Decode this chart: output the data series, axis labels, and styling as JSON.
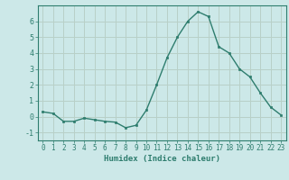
{
  "x": [
    0,
    1,
    2,
    3,
    4,
    5,
    6,
    7,
    8,
    9,
    10,
    11,
    12,
    13,
    14,
    15,
    16,
    17,
    18,
    19,
    20,
    21,
    22,
    23
  ],
  "y": [
    0.3,
    0.2,
    -0.3,
    -0.3,
    -0.1,
    -0.2,
    -0.3,
    -0.35,
    -0.7,
    -0.55,
    0.4,
    2.0,
    3.7,
    5.0,
    6.0,
    6.6,
    6.3,
    4.4,
    4.0,
    3.0,
    2.5,
    1.5,
    0.6,
    0.1
  ],
  "line_color": "#2e7d6e",
  "marker": "s",
  "marker_size": 2.0,
  "xlabel": "Humidex (Indice chaleur)",
  "xlabel_fontsize": 6.5,
  "bg_color": "#cce8e8",
  "grid_color": "#b8d0c8",
  "tick_color": "#2e7d6e",
  "spine_color": "#2e7d6e",
  "ylim": [
    -1.5,
    7.0
  ],
  "yticks": [
    -1,
    0,
    1,
    2,
    3,
    4,
    5,
    6
  ],
  "xlim": [
    -0.5,
    23.5
  ],
  "xticks": [
    0,
    1,
    2,
    3,
    4,
    5,
    6,
    7,
    8,
    9,
    10,
    11,
    12,
    13,
    14,
    15,
    16,
    17,
    18,
    19,
    20,
    21,
    22,
    23
  ],
  "tick_fontsize": 5.5,
  "linewidth": 1.0
}
